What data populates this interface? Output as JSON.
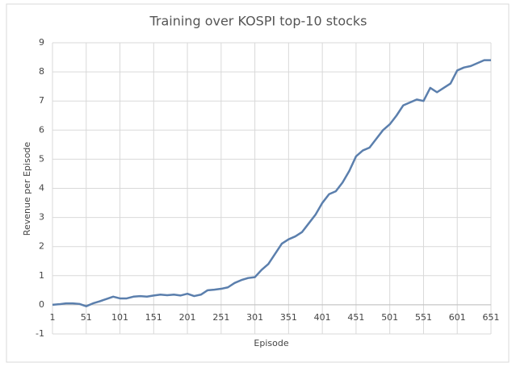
{
  "chart_data": {
    "type": "line",
    "title": "Training over KOSPI top-10 stocks",
    "x_label": "Episode",
    "y_label": "Revenue per Episode",
    "x": [
      1,
      11,
      21,
      31,
      41,
      51,
      61,
      71,
      81,
      91,
      101,
      111,
      121,
      131,
      141,
      151,
      161,
      171,
      181,
      191,
      201,
      211,
      221,
      231,
      241,
      251,
      261,
      271,
      281,
      291,
      301,
      311,
      321,
      331,
      341,
      351,
      361,
      371,
      381,
      391,
      401,
      411,
      421,
      431,
      441,
      451,
      461,
      471,
      481,
      491,
      501,
      511,
      521,
      531,
      541,
      551,
      561,
      571,
      581,
      591,
      601,
      611,
      621,
      631,
      641,
      651
    ],
    "series": [
      {
        "name": "Revenue per Episode",
        "color": "#5b7fad",
        "values": [
          0,
          0.02,
          0.05,
          0.05,
          0.03,
          -0.05,
          0.05,
          0.12,
          0.2,
          0.28,
          0.22,
          0.22,
          0.28,
          0.3,
          0.28,
          0.32,
          0.35,
          0.33,
          0.35,
          0.32,
          0.38,
          0.3,
          0.35,
          0.5,
          0.52,
          0.55,
          0.6,
          0.75,
          0.85,
          0.92,
          0.95,
          1.2,
          1.4,
          1.75,
          2.1,
          2.25,
          2.35,
          2.5,
          2.8,
          3.1,
          3.5,
          3.8,
          3.9,
          4.2,
          4.6,
          5.1,
          5.3,
          5.4,
          5.7,
          6.0,
          6.2,
          6.5,
          6.85,
          6.95,
          7.05,
          7.0,
          7.45,
          7.3,
          7.45,
          7.6,
          8.05,
          8.15,
          8.2,
          8.3,
          8.4,
          8.4
        ]
      }
    ],
    "xlim": [
      1,
      651
    ],
    "xticks": [
      1,
      51,
      101,
      151,
      201,
      251,
      301,
      351,
      401,
      451,
      501,
      551,
      601,
      651
    ],
    "ylim": [
      -1,
      9
    ],
    "yticks": [
      -1,
      0,
      1,
      2,
      3,
      4,
      5,
      6,
      7,
      8,
      9
    ],
    "grid": true
  }
}
